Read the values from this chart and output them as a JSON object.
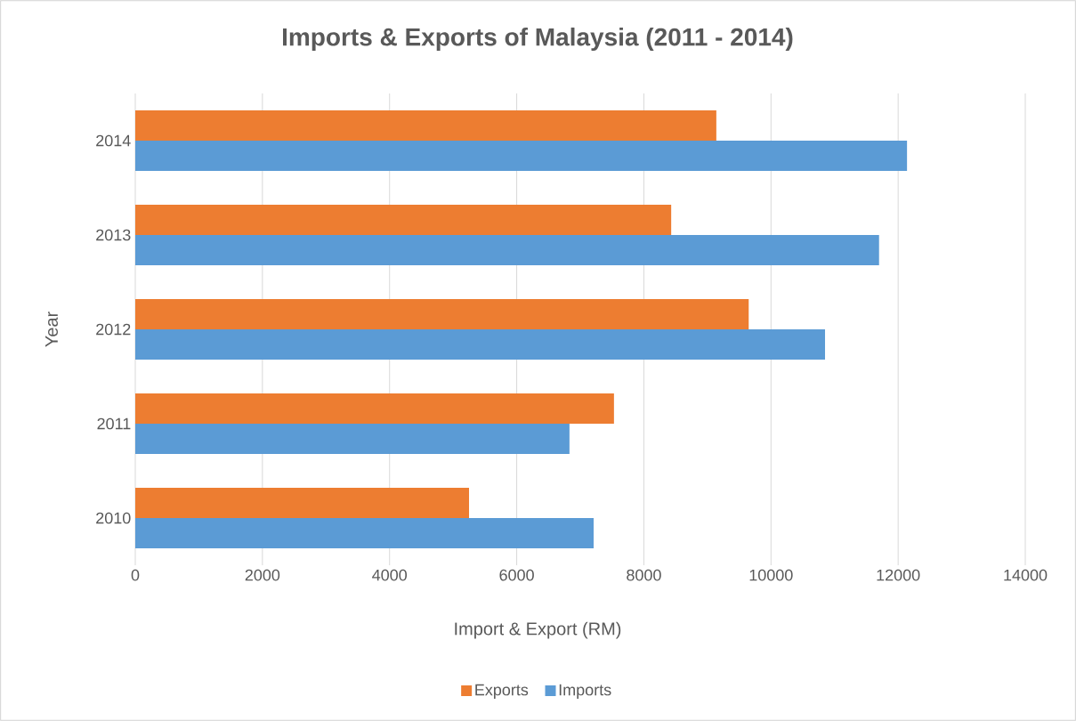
{
  "chart_data": {
    "type": "bar",
    "orientation": "horizontal",
    "title": "Imports & Exports of Malaysia (2011 - 2014)",
    "xlabel": "Import & Export (RM)",
    "ylabel": "Year",
    "categories": [
      "2014",
      "2013",
      "2012",
      "2011",
      "2010"
    ],
    "series": [
      {
        "name": "Exports",
        "color": "#ed7d31",
        "values": [
          9140,
          8430,
          9650,
          7530,
          5250
        ]
      },
      {
        "name": "Imports",
        "color": "#5b9bd5",
        "values": [
          12140,
          11700,
          10850,
          6830,
          7210
        ]
      }
    ],
    "xlim": [
      0,
      14000
    ],
    "xticks": [
      0,
      2000,
      4000,
      6000,
      8000,
      10000,
      12000,
      14000
    ],
    "grid": "x",
    "legend": "bottom"
  }
}
